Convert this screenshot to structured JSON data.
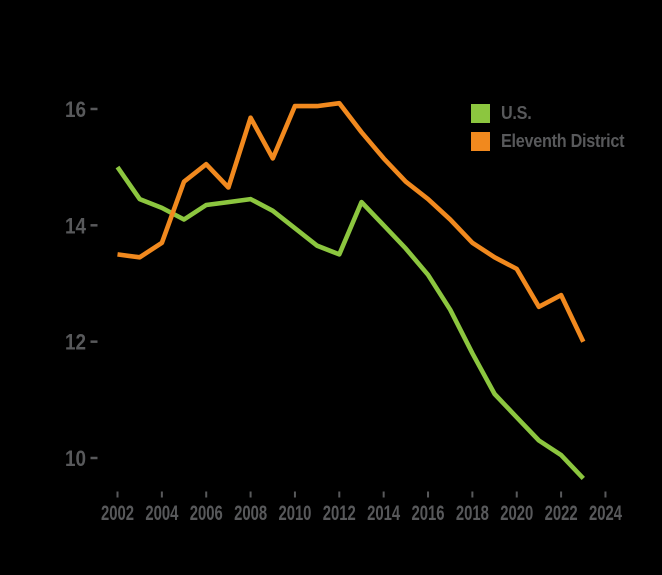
{
  "chart_data": {
    "type": "line",
    "title": "",
    "xlabel": "",
    "ylabel": "",
    "x": [
      2002,
      2003,
      2004,
      2005,
      2006,
      2007,
      2008,
      2009,
      2010,
      2011,
      2012,
      2013,
      2014,
      2015,
      2016,
      2017,
      2018,
      2019,
      2020,
      2021,
      2022,
      2023
    ],
    "series": [
      {
        "name": "U.S.",
        "color": "#8CC63F",
        "values": [
          15.0,
          14.45,
          14.3,
          14.1,
          14.35,
          14.4,
          14.45,
          14.25,
          13.95,
          13.65,
          13.5,
          14.4,
          14.0,
          13.6,
          13.15,
          12.55,
          11.8,
          11.1,
          10.7,
          10.3,
          10.05,
          9.65
        ]
      },
      {
        "name": "Eleventh District",
        "color": "#F1891E",
        "values": [
          13.5,
          13.45,
          13.7,
          14.75,
          15.05,
          14.65,
          15.85,
          15.15,
          16.05,
          16.05,
          16.1,
          15.6,
          15.15,
          14.75,
          14.45,
          14.1,
          13.7,
          13.45,
          13.25,
          12.6,
          12.8,
          12.0
        ]
      }
    ],
    "x_ticks": [
      2002,
      2004,
      2006,
      2008,
      2010,
      2012,
      2014,
      2016,
      2018,
      2020,
      2022,
      2024
    ],
    "y_ticks": [
      10,
      12,
      14,
      16
    ],
    "ylim": [
      9.4,
      16.5
    ],
    "xlim": [
      2002,
      2024
    ],
    "grid": false,
    "legend_position": "top-right",
    "background_color": "#000000",
    "text_color": "#58595B"
  }
}
